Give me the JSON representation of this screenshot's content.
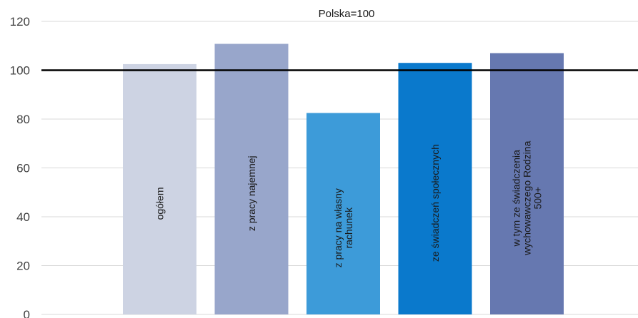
{
  "chart_data": {
    "type": "bar",
    "title": "Polska=100",
    "categories": [
      [
        "ogółem"
      ],
      [
        "z pracy najemnej"
      ],
      [
        "z pracy na własny",
        "rachunek"
      ],
      [
        "ze świadczeń społecznych"
      ],
      [
        "w tym ze świadczenia",
        "wychowawczego Rodzina",
        "500+"
      ]
    ],
    "values": [
      102.5,
      110.8,
      82.5,
      103,
      107
    ],
    "colors": [
      "#cdd3e3",
      "#98a6cb",
      "#3d9bd9",
      "#0a79cc",
      "#6678b0"
    ],
    "reference_line": 100,
    "reference_line_color": "#000000",
    "yticks": [
      "0",
      "20",
      "40",
      "60",
      "80",
      "100",
      "120"
    ],
    "ylim": [
      0,
      120
    ],
    "grid": true,
    "legend": false,
    "xlabel": "",
    "ylabel": ""
  }
}
